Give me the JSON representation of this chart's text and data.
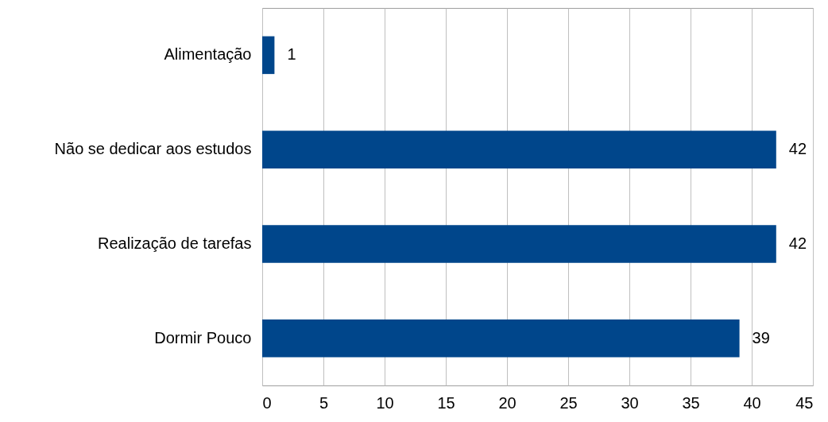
{
  "chart_data": {
    "type": "bar",
    "orientation": "horizontal",
    "categories": [
      "Alimentação",
      "Não se dedicar aos estudos",
      "Realização de tarefas",
      "Dormir Pouco"
    ],
    "values": [
      1,
      42,
      42,
      39
    ],
    "color": "#00468b",
    "xlim": [
      0,
      45
    ],
    "xticks": [
      0,
      5,
      10,
      15,
      20,
      25,
      30,
      35,
      40,
      45
    ],
    "grid": "x",
    "data_labels": true
  }
}
